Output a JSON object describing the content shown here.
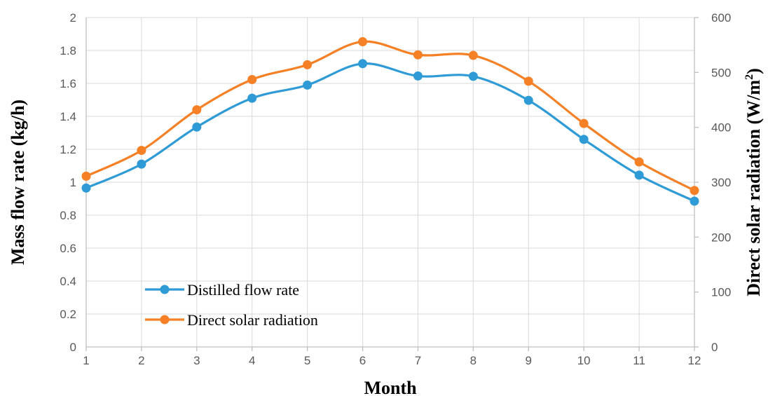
{
  "chart_data": {
    "type": "line",
    "xlabel": "Month",
    "ylabel": "Mass flow rate (kg/h)",
    "y2label_main": "Direct solar radiation (W/m",
    "y2label_sup": "2",
    "y2label_end": ")",
    "x": [
      1,
      2,
      3,
      4,
      5,
      6,
      7,
      8,
      9,
      10,
      11,
      12
    ],
    "x_tick_labels": [
      "1",
      "2",
      "3",
      "4",
      "5",
      "6",
      "7",
      "8",
      "9",
      "10",
      "11",
      "12"
    ],
    "ylim": [
      0,
      2
    ],
    "y_tick_labels": [
      "0",
      "0.2",
      "0.4",
      "0.6",
      "0.8",
      "1",
      "1.2",
      "1.4",
      "1.6",
      "1.8",
      "2"
    ],
    "y2lim": [
      0,
      600
    ],
    "y2_tick_labels": [
      "0",
      "100",
      "200",
      "300",
      "400",
      "500",
      "600"
    ],
    "grid": true,
    "smooth": true,
    "legend_position": "bottom-left",
    "series": [
      {
        "name": "Distilled flow rate",
        "axis": "left",
        "color": "#2e9bd6",
        "values": [
          0.965,
          1.11,
          1.335,
          1.51,
          1.59,
          1.72,
          1.645,
          1.643,
          1.497,
          1.26,
          1.043,
          0.885
        ]
      },
      {
        "name": "Direct solar radiation",
        "axis": "right",
        "color": "#f58025",
        "values": [
          311,
          358,
          432,
          487,
          514,
          556,
          532,
          531,
          484,
          407,
          337,
          285
        ]
      }
    ]
  }
}
